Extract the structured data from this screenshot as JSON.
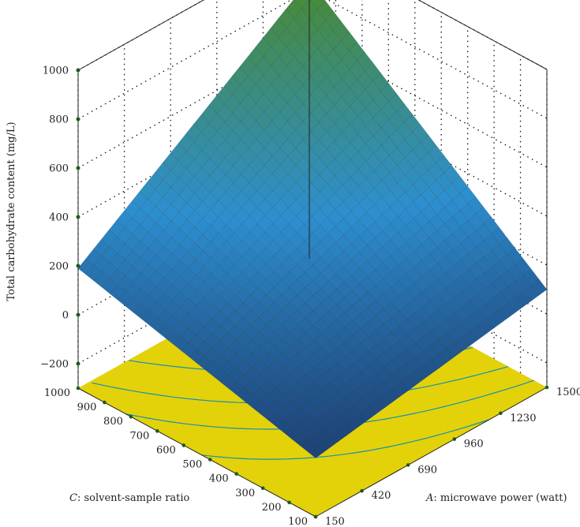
{
  "chart_data": {
    "type": "surface3d",
    "title": "",
    "zlabel": "Total carbohydrate content (mg/L)",
    "xlabel_italic": "A",
    "xlabel_rest": ": microwave power (watt)",
    "ylabel_italic": "C",
    "ylabel_rest": ": solvent-sample ratio",
    "x_ticks": [
      "150",
      "420",
      "690",
      "960",
      "1230",
      "1500"
    ],
    "y_ticks": [
      "100",
      "200",
      "300",
      "400",
      "500",
      "600",
      "700",
      "800",
      "900",
      "1000"
    ],
    "z_ticks": [
      "1000",
      "800",
      "600",
      "400",
      "200",
      "0",
      "−200"
    ],
    "xlim": [
      150,
      1500
    ],
    "ylim": [
      100,
      1000
    ],
    "zlim": [
      -300,
      1000
    ],
    "corner_values": [
      {
        "A": 150,
        "C": 100,
        "z": -60
      },
      {
        "A": 1500,
        "C": 100,
        "z": 100
      },
      {
        "A": 150,
        "C": 1000,
        "z": 190
      },
      {
        "A": 1500,
        "C": 1000,
        "z": 840
      }
    ],
    "floor_contours": [
      60,
      140,
      220,
      330
    ],
    "colors": {
      "low": "#1c3a6e",
      "mid": "#2d8fd0",
      "high": "#4a8a2c",
      "floor": "#e3d20a",
      "contour": "#1a8fb0"
    },
    "grid": true
  }
}
